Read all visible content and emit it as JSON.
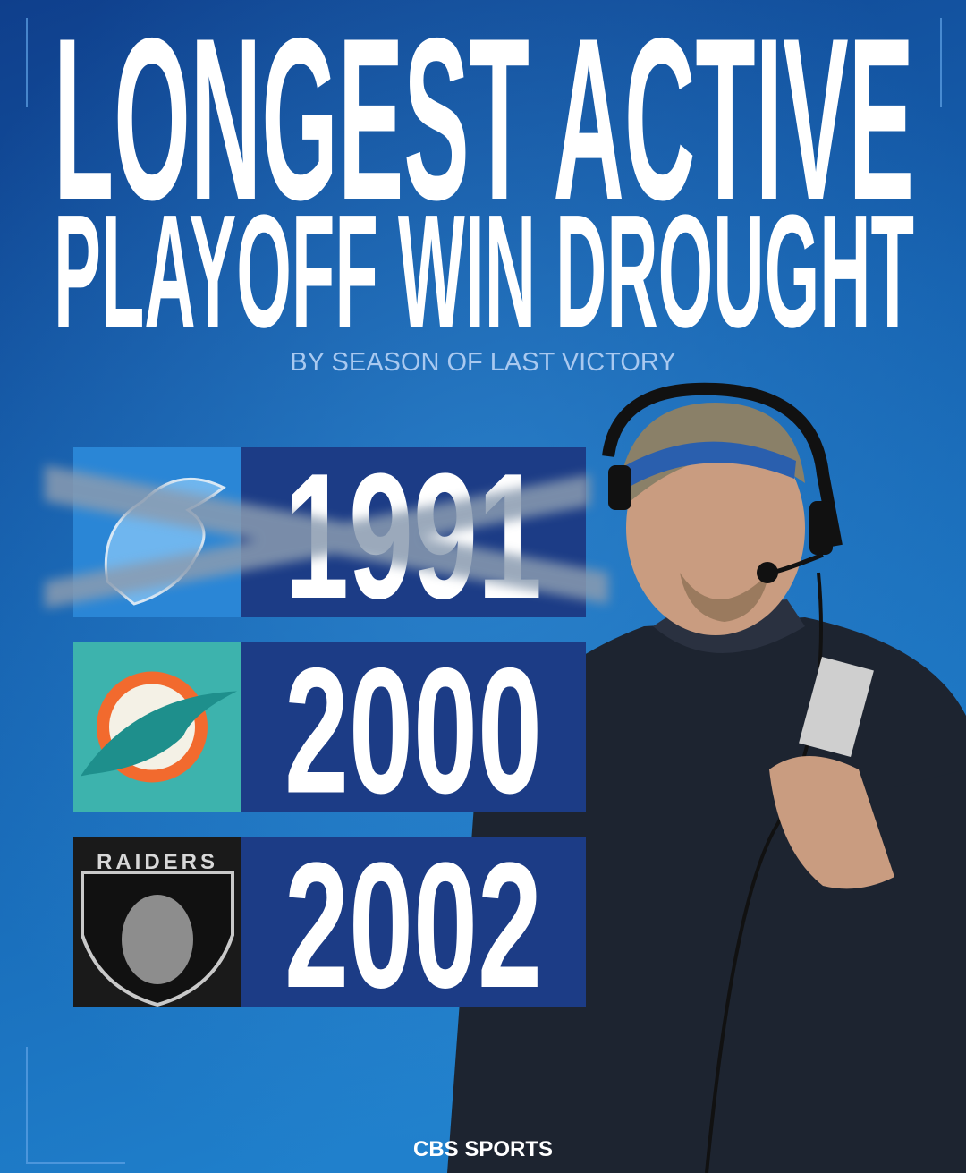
{
  "header": {
    "title_lines": [
      "LONGEST ACTIVE",
      "PLAYOFF WIN DROUGHT"
    ],
    "subtitle": "BY SEASON OF LAST VICTORY"
  },
  "rows": [
    {
      "year": "1991",
      "crossed_out": true
    },
    {
      "year": "2000"
    },
    {
      "year": "2002",
      "logo_text": "RAIDERS"
    }
  ],
  "footer": {
    "brand": "CBS SPORTS"
  }
}
